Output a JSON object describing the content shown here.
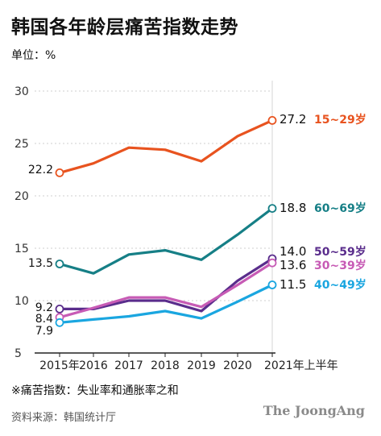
{
  "header": {
    "title": "韩国各年龄层痛苦指数走势",
    "unit": "单位：%"
  },
  "footer": {
    "note": "※痛苦指数：失业率和通胀率之和",
    "source": "资料来源：韩国统计厅",
    "brand": "The JoongAng"
  },
  "chart_data": {
    "type": "line",
    "categories": [
      "2015年",
      "2016",
      "2017",
      "2018",
      "2019",
      "2020",
      "2021年上半年"
    ],
    "ylim": [
      5,
      31
    ],
    "yticks": [
      5,
      10,
      15,
      20,
      25,
      30
    ],
    "grid": true,
    "series": [
      {
        "name": "15~29岁",
        "color": "#e8531f",
        "values": [
          22.2,
          23.1,
          24.6,
          24.4,
          23.3,
          25.7,
          27.2
        ],
        "start_label": "22.2",
        "end_label": "27.2"
      },
      {
        "name": "60~69岁",
        "color": "#167f86",
        "values": [
          13.5,
          12.6,
          14.4,
          14.8,
          13.9,
          16.3,
          18.8
        ],
        "start_label": "13.5",
        "end_label": "18.8"
      },
      {
        "name": "50~59岁",
        "color": "#5a2d8c",
        "values": [
          9.2,
          9.2,
          10.0,
          10.0,
          9.0,
          11.9,
          14.0
        ],
        "start_label": "9.2",
        "end_label": "14.0"
      },
      {
        "name": "30~39岁",
        "color": "#c75bb5",
        "values": [
          8.4,
          9.3,
          10.3,
          10.3,
          9.4,
          11.5,
          13.6
        ],
        "start_label": "8.4",
        "end_label": "13.6"
      },
      {
        "name": "40~49岁",
        "color": "#1aa6e0",
        "values": [
          7.9,
          8.2,
          8.5,
          9.0,
          8.3,
          9.9,
          11.5
        ],
        "start_label": "7.9",
        "end_label": "11.5"
      }
    ]
  }
}
